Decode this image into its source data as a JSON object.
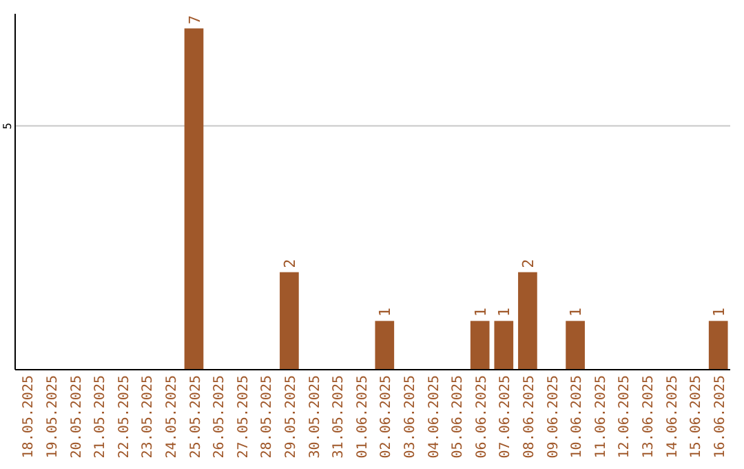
{
  "chart_data": {
    "type": "bar",
    "categories": [
      "18.05.2025",
      "19.05.2025",
      "20.05.2025",
      "21.05.2025",
      "22.05.2025",
      "23.05.2025",
      "24.05.2025",
      "25.05.2025",
      "26.05.2025",
      "27.05.2025",
      "28.05.2025",
      "29.05.2025",
      "30.05.2025",
      "31.05.2025",
      "01.06.2025",
      "02.06.2025",
      "03.06.2025",
      "04.06.2025",
      "05.06.2025",
      "06.06.2025",
      "07.06.2025",
      "08.06.2025",
      "09.06.2025",
      "10.06.2025",
      "11.06.2025",
      "12.06.2025",
      "13.06.2025",
      "14.06.2025",
      "15.06.2025",
      "16.06.2025"
    ],
    "values": [
      0,
      0,
      0,
      0,
      0,
      0,
      0,
      7,
      0,
      0,
      0,
      2,
      0,
      0,
      0,
      1,
      0,
      0,
      0,
      1,
      1,
      2,
      0,
      1,
      0,
      0,
      0,
      0,
      0,
      1
    ],
    "value_labels": [
      null,
      null,
      null,
      null,
      null,
      null,
      null,
      "7",
      null,
      null,
      null,
      "2",
      null,
      null,
      null,
      "1",
      null,
      null,
      null,
      "1",
      "1",
      "2",
      null,
      "1",
      null,
      null,
      null,
      null,
      null,
      "1"
    ],
    "color": "#a0582a",
    "ylim": [
      0,
      7.3
    ],
    "yticks": [
      5
    ],
    "grid": "y"
  }
}
